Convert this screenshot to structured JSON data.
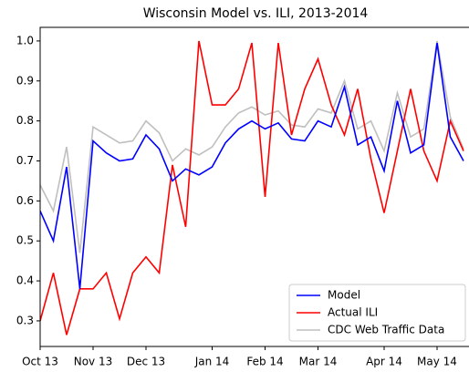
{
  "chart_data": {
    "type": "line",
    "title": "Wisconsin Model vs. ILI, 2013-2014",
    "categories": [
      "Oct 13",
      null,
      null,
      null,
      "Nov 13",
      null,
      null,
      null,
      "Dec 13",
      null,
      null,
      null,
      null,
      "Jan 14",
      null,
      null,
      null,
      "Feb 14",
      null,
      null,
      null,
      "Mar 14",
      null,
      null,
      null,
      null,
      "Apr 14",
      null,
      null,
      null,
      "May 14",
      null,
      null
    ],
    "series": [
      {
        "name": "Model",
        "color": "#0000ff",
        "values": [
          0.575,
          0.5,
          0.685,
          0.38,
          0.75,
          0.72,
          0.7,
          0.705,
          0.765,
          0.73,
          0.65,
          0.68,
          0.665,
          0.685,
          0.745,
          0.78,
          0.8,
          0.78,
          0.795,
          0.755,
          0.75,
          0.8,
          0.785,
          0.885,
          0.74,
          0.76,
          0.675,
          0.85,
          0.72,
          0.74,
          0.995,
          0.76,
          0.7
        ]
      },
      {
        "name": "Actual ILI",
        "color": "#ff0000",
        "values": [
          0.3,
          0.42,
          0.265,
          0.38,
          0.38,
          0.42,
          0.305,
          0.42,
          0.46,
          0.42,
          0.69,
          0.535,
          1.0,
          0.84,
          0.84,
          0.88,
          0.995,
          0.61,
          0.995,
          0.765,
          0.88,
          0.955,
          0.84,
          0.765,
          0.88,
          0.705,
          0.57,
          0.725,
          0.88,
          0.725,
          0.65,
          0.8,
          0.725
        ]
      },
      {
        "name": "CDC Web Traffic Data",
        "color": "#bfbfbf",
        "values": [
          0.64,
          0.575,
          0.735,
          0.47,
          0.785,
          0.765,
          0.745,
          0.75,
          0.8,
          0.77,
          0.7,
          0.73,
          0.715,
          0.735,
          0.785,
          0.82,
          0.835,
          0.815,
          0.825,
          0.79,
          0.785,
          0.83,
          0.82,
          0.9,
          0.78,
          0.8,
          0.725,
          0.87,
          0.76,
          0.78,
          1.0,
          0.81,
          0.73
        ]
      }
    ],
    "ylim": [
      0.236,
      1.034
    ],
    "yticks": [
      0.3,
      0.4,
      0.5,
      0.6,
      0.7,
      0.8,
      0.9,
      {
        "value": 1,
        "label": "1.0"
      }
    ],
    "legend": "lower right"
  }
}
